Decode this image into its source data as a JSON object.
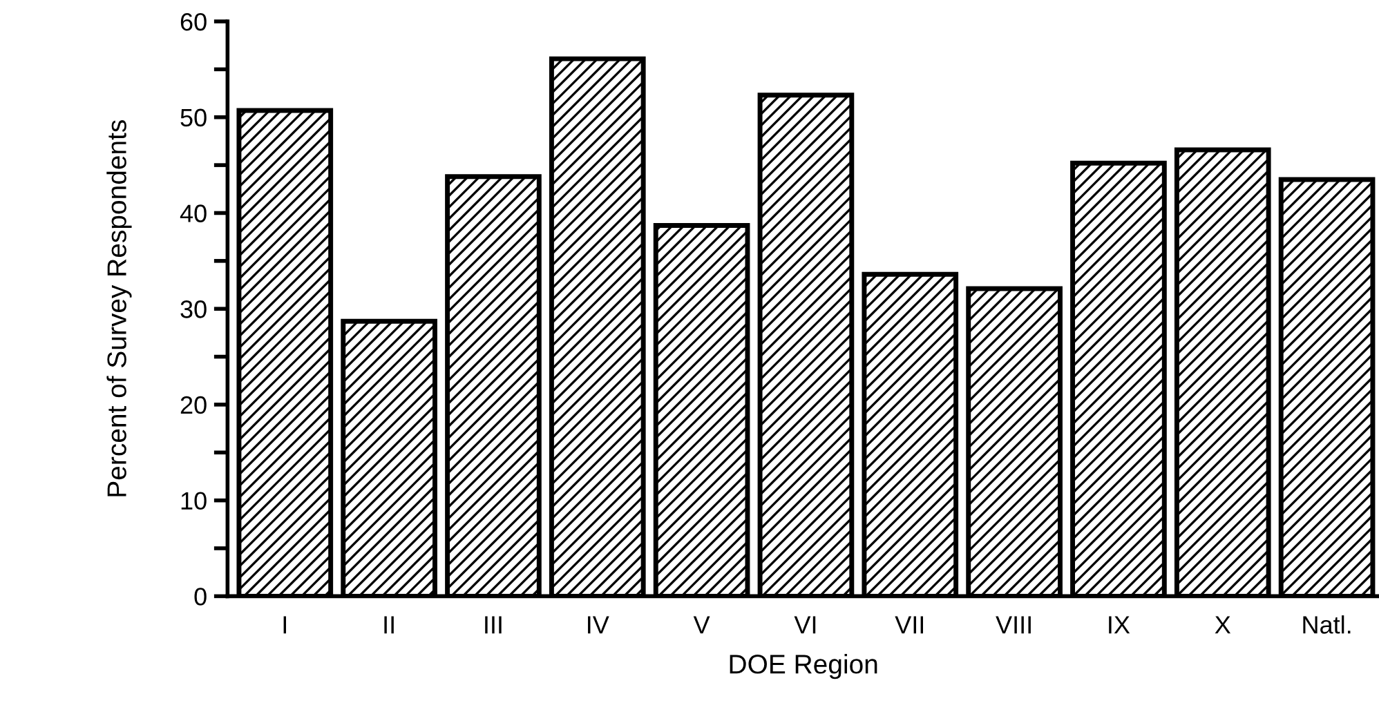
{
  "chart_data": {
    "type": "bar",
    "xlabel": "DOE Region",
    "ylabel": "Percent of Survey Respondents",
    "categories": [
      "I",
      "II",
      "III",
      "IV",
      "V",
      "VI",
      "VII",
      "VIII",
      "IX",
      "X",
      "Natl."
    ],
    "values": [
      50.7,
      28.7,
      43.8,
      56.1,
      38.7,
      52.3,
      33.6,
      32.1,
      45.2,
      46.6,
      43.5
    ],
    "color": "#000000",
    "ylim": [
      0,
      60
    ],
    "yticks": [
      0,
      {
        "value": 5,
        "label": null
      },
      10,
      {
        "value": 15,
        "label": null
      },
      20,
      {
        "value": 25,
        "label": null
      },
      30,
      {
        "value": 35,
        "label": null
      },
      40,
      {
        "value": 45,
        "label": null
      },
      50,
      {
        "value": 55,
        "label": null
      },
      60
    ],
    "grid": false
  }
}
